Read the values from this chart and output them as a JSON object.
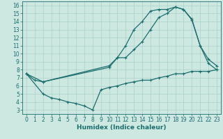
{
  "bg_color": "#cce8e0",
  "grid_color": "#aad0c8",
  "line_color": "#1a6e6e",
  "line_width": 0.9,
  "marker": "+",
  "marker_size": 3.5,
  "marker_edge_width": 0.8,
  "xlabel": "Humidex (Indice chaleur)",
  "xlabel_fontsize": 6.5,
  "tick_fontsize": 5.5,
  "xlim": [
    -0.5,
    23.5
  ],
  "ylim": [
    2.5,
    16.5
  ],
  "xticks": [
    0,
    1,
    2,
    3,
    4,
    5,
    6,
    7,
    8,
    9,
    10,
    11,
    12,
    13,
    14,
    15,
    16,
    17,
    18,
    19,
    20,
    21,
    22,
    23
  ],
  "yticks": [
    3,
    4,
    5,
    6,
    7,
    8,
    9,
    10,
    11,
    12,
    13,
    14,
    15,
    16
  ],
  "curve1_x": [
    0,
    1,
    2,
    10,
    11,
    12,
    13,
    14,
    15,
    16,
    17,
    18,
    19,
    20,
    21,
    22,
    23
  ],
  "curve1_y": [
    7.5,
    6.7,
    6.5,
    8.5,
    9.5,
    11.0,
    13.0,
    14.0,
    15.3,
    15.5,
    15.5,
    15.8,
    15.5,
    14.3,
    11.0,
    9.3,
    8.5
  ],
  "curve2_x": [
    0,
    2,
    10,
    11,
    12,
    13,
    14,
    15,
    16,
    17,
    18,
    19,
    20,
    21,
    22,
    23
  ],
  "curve2_y": [
    7.5,
    6.5,
    8.3,
    9.5,
    9.5,
    10.5,
    11.5,
    13.0,
    14.5,
    15.0,
    15.8,
    15.5,
    14.2,
    11.0,
    8.8,
    8.0
  ],
  "curve3_x": [
    0,
    2,
    3,
    4,
    5,
    6,
    7,
    8,
    9,
    10,
    11,
    12,
    13,
    14,
    15,
    16,
    17,
    18,
    19,
    20,
    21,
    22,
    23
  ],
  "curve3_y": [
    7.5,
    5.0,
    4.5,
    4.3,
    4.0,
    3.8,
    3.5,
    3.0,
    5.5,
    5.8,
    6.0,
    6.3,
    6.5,
    6.7,
    6.7,
    7.0,
    7.2,
    7.5,
    7.5,
    7.8,
    7.8,
    7.8,
    8.0
  ]
}
